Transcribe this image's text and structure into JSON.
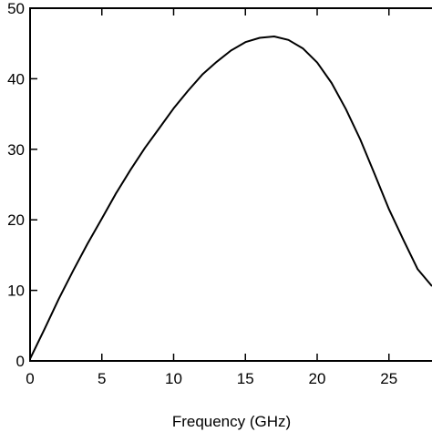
{
  "chart_data": {
    "type": "line",
    "title": "",
    "xlabel": "Frequency  (GHz)",
    "ylabel": "",
    "xlim": [
      0,
      28
    ],
    "ylim": [
      0,
      50
    ],
    "x_ticks": [
      0,
      5,
      10,
      15,
      20,
      25
    ],
    "x_tick_labels": [
      "0",
      "5",
      "10",
      "15",
      "20",
      "25"
    ],
    "y_ticks": [
      0,
      10,
      20,
      30,
      40,
      50
    ],
    "y_tick_labels": [
      "0",
      "10",
      "20",
      "30",
      "40",
      "50"
    ],
    "grid": false,
    "series": [
      {
        "x": [
          0,
          1,
          2,
          3,
          4,
          5,
          6,
          7,
          8,
          9,
          10,
          11,
          12,
          13,
          14,
          15,
          16,
          17,
          18,
          19,
          20,
          21,
          22,
          23,
          24,
          25,
          26,
          27,
          28
        ],
        "values": [
          0.3,
          4.5,
          8.8,
          12.8,
          16.6,
          20.2,
          23.8,
          27.1,
          30.2,
          33.0,
          35.8,
          38.3,
          40.6,
          42.4,
          44.0,
          45.2,
          45.8,
          46.0,
          45.5,
          44.3,
          42.3,
          39.4,
          35.7,
          31.4,
          26.5,
          21.5,
          17.2,
          13.0,
          10.6
        ]
      }
    ]
  }
}
